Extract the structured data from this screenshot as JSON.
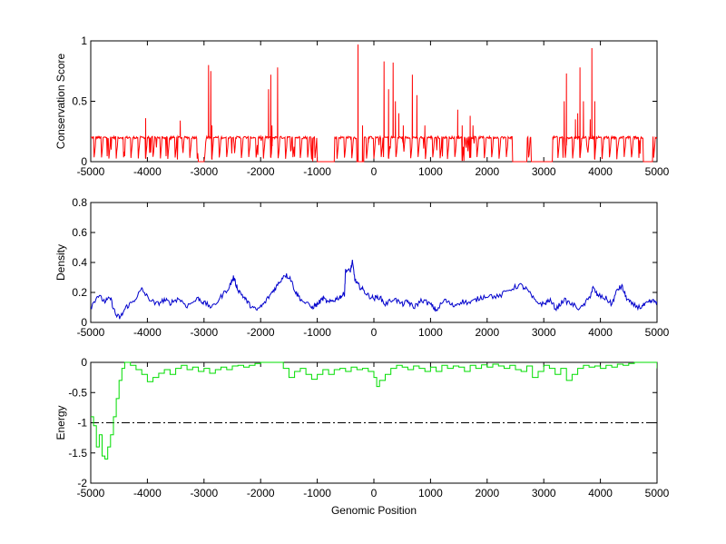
{
  "chart_data": [
    {
      "type": "line",
      "ylabel": "Conservation Score",
      "xlim": [
        -5000,
        5000
      ],
      "ylim": [
        0,
        1
      ],
      "xticks": [
        "-5000",
        "-4000",
        "-3000",
        "-2000",
        "-1000",
        "0",
        "1000",
        "2000",
        "3000",
        "4000",
        "5000"
      ],
      "yticks": [
        "0",
        "0.5",
        "1"
      ],
      "series": [
        {
          "color": "#ff0000",
          "baseline": 0.2,
          "spikes": [
            [
              -4030,
              0.36
            ],
            [
              -3990,
              0.2
            ],
            [
              -3420,
              0.34
            ],
            [
              -2920,
              0.8
            ],
            [
              -2880,
              0.75
            ],
            [
              -2860,
              0.3
            ],
            [
              -1860,
              0.6
            ],
            [
              -1820,
              0.72
            ],
            [
              -1800,
              0.3
            ],
            [
              -1700,
              0.78
            ],
            [
              -280,
              0.97
            ],
            [
              -200,
              0.3
            ],
            [
              -100,
              0.2
            ],
            [
              180,
              0.83
            ],
            [
              260,
              0.6
            ],
            [
              340,
              0.82
            ],
            [
              380,
              0.5
            ],
            [
              440,
              0.4
            ],
            [
              520,
              0.3
            ],
            [
              680,
              0.72
            ],
            [
              760,
              0.55
            ],
            [
              900,
              0.3
            ],
            [
              1480,
              0.43
            ],
            [
              1560,
              0.3
            ],
            [
              1700,
              0.38
            ],
            [
              1750,
              0.3
            ],
            [
              3360,
              0.5
            ],
            [
              3400,
              0.73
            ],
            [
              3560,
              0.35
            ],
            [
              3600,
              0.4
            ],
            [
              3640,
              0.78
            ],
            [
              3700,
              0.5
            ],
            [
              3820,
              0.35
            ],
            [
              3850,
              0.94
            ],
            [
              3900,
              0.5
            ]
          ],
          "zero_ranges": [
            [
              -3100,
              -3000
            ],
            [
              -1000,
              -700
            ],
            [
              -300,
              -180
            ],
            [
              2450,
              2700
            ],
            [
              2780,
              3150
            ],
            [
              4760,
              4920
            ]
          ]
        }
      ]
    },
    {
      "type": "line",
      "ylabel": "Density",
      "xlim": [
        -5000,
        5000
      ],
      "ylim": [
        0,
        0.8
      ],
      "xticks": [
        "-5000",
        "-4000",
        "-3000",
        "-2000",
        "-1000",
        "0",
        "1000",
        "2000",
        "3000",
        "4000",
        "5000"
      ],
      "yticks": [
        "0",
        "0.2",
        "0.4",
        "0.6",
        "0.8"
      ],
      "series": [
        {
          "color": "#0000cc",
          "points": [
            [
              -5000,
              0.1
            ],
            [
              -4880,
              0.18
            ],
            [
              -4750,
              0.14
            ],
            [
              -4650,
              0.16
            ],
            [
              -4560,
              0.05
            ],
            [
              -4480,
              0.03
            ],
            [
              -4380,
              0.1
            ],
            [
              -4250,
              0.14
            ],
            [
              -4100,
              0.22
            ],
            [
              -4000,
              0.17
            ],
            [
              -3850,
              0.12
            ],
            [
              -3700,
              0.15
            ],
            [
              -3600,
              0.13
            ],
            [
              -3450,
              0.16
            ],
            [
              -3300,
              0.11
            ],
            [
              -3100,
              0.16
            ],
            [
              -3000,
              0.13
            ],
            [
              -2850,
              0.1
            ],
            [
              -2700,
              0.17
            ],
            [
              -2550,
              0.24
            ],
            [
              -2480,
              0.3
            ],
            [
              -2400,
              0.22
            ],
            [
              -2300,
              0.17
            ],
            [
              -2200,
              0.12
            ],
            [
              -2080,
              0.08
            ],
            [
              -1950,
              0.12
            ],
            [
              -1800,
              0.2
            ],
            [
              -1700,
              0.25
            ],
            [
              -1580,
              0.32
            ],
            [
              -1480,
              0.3
            ],
            [
              -1380,
              0.2
            ],
            [
              -1280,
              0.15
            ],
            [
              -1100,
              0.1
            ],
            [
              -1000,
              0.12
            ],
            [
              -900,
              0.16
            ],
            [
              -800,
              0.13
            ],
            [
              -700,
              0.15
            ],
            [
              -600,
              0.17
            ],
            [
              -520,
              0.19
            ],
            [
              -500,
              0.35
            ],
            [
              -420,
              0.34
            ],
            [
              -380,
              0.4
            ],
            [
              -330,
              0.28
            ],
            [
              -280,
              0.25
            ],
            [
              -200,
              0.22
            ],
            [
              -100,
              0.18
            ],
            [
              0,
              0.16
            ],
            [
              100,
              0.17
            ],
            [
              200,
              0.12
            ],
            [
              350,
              0.16
            ],
            [
              500,
              0.12
            ],
            [
              600,
              0.14
            ],
            [
              700,
              0.1
            ],
            [
              850,
              0.15
            ],
            [
              1000,
              0.12
            ],
            [
              1100,
              0.08
            ],
            [
              1250,
              0.15
            ],
            [
              1400,
              0.11
            ],
            [
              1550,
              0.14
            ],
            [
              1700,
              0.13
            ],
            [
              1850,
              0.16
            ],
            [
              2000,
              0.18
            ],
            [
              2200,
              0.17
            ],
            [
              2400,
              0.22
            ],
            [
              2580,
              0.25
            ],
            [
              2700,
              0.22
            ],
            [
              2850,
              0.14
            ],
            [
              3000,
              0.12
            ],
            [
              3100,
              0.15
            ],
            [
              3220,
              0.09
            ],
            [
              3350,
              0.15
            ],
            [
              3500,
              0.12
            ],
            [
              3650,
              0.09
            ],
            [
              3800,
              0.16
            ],
            [
              3870,
              0.23
            ],
            [
              3950,
              0.18
            ],
            [
              4100,
              0.16
            ],
            [
              4200,
              0.12
            ],
            [
              4300,
              0.22
            ],
            [
              4380,
              0.24
            ],
            [
              4450,
              0.17
            ],
            [
              4550,
              0.12
            ],
            [
              4700,
              0.1
            ],
            [
              4800,
              0.12
            ],
            [
              4900,
              0.14
            ],
            [
              5000,
              0.14
            ]
          ]
        }
      ]
    },
    {
      "type": "line",
      "xlabel": "Genomic Position",
      "ylabel": "Energy",
      "xlim": [
        -5000,
        5000
      ],
      "ylim": [
        -2,
        0
      ],
      "xticks": [
        "-5000",
        "-4000",
        "-3000",
        "-2000",
        "-1000",
        "0",
        "1000",
        "2000",
        "3000",
        "4000",
        "5000"
      ],
      "yticks": [
        "-2",
        "-1.5",
        "-1",
        "-0.5",
        "0"
      ],
      "reference_line": {
        "y": -1,
        "style": "dash-dot",
        "color": "#000000"
      },
      "series": [
        {
          "color": "#00dd00",
          "points": [
            [
              -5000,
              -0.9
            ],
            [
              -4950,
              -1.05
            ],
            [
              -4900,
              -1.4
            ],
            [
              -4850,
              -1.2
            ],
            [
              -4800,
              -1.55
            ],
            [
              -4750,
              -1.6
            ],
            [
              -4700,
              -1.4
            ],
            [
              -4650,
              -1.2
            ],
            [
              -4600,
              -0.9
            ],
            [
              -4550,
              -0.6
            ],
            [
              -4500,
              -0.3
            ],
            [
              -4450,
              -0.1
            ],
            [
              -4400,
              0.0
            ],
            [
              -4300,
              -0.05
            ],
            [
              -4200,
              -0.12
            ],
            [
              -4100,
              -0.2
            ],
            [
              -4000,
              -0.32
            ],
            [
              -3900,
              -0.25
            ],
            [
              -3800,
              -0.18
            ],
            [
              -3700,
              -0.12
            ],
            [
              -3600,
              -0.2
            ],
            [
              -3500,
              -0.1
            ],
            [
              -3400,
              -0.05
            ],
            [
              -3300,
              -0.12
            ],
            [
              -3200,
              -0.08
            ],
            [
              -3100,
              -0.15
            ],
            [
              -3000,
              -0.1
            ],
            [
              -2900,
              -0.18
            ],
            [
              -2800,
              -0.12
            ],
            [
              -2700,
              -0.08
            ],
            [
              -2600,
              -0.12
            ],
            [
              -2500,
              -0.06
            ],
            [
              -2400,
              -0.05
            ],
            [
              -2300,
              -0.08
            ],
            [
              -2200,
              -0.05
            ],
            [
              -2100,
              -0.02
            ],
            [
              -2000,
              0.0
            ],
            [
              -1900,
              0.0
            ],
            [
              -1800,
              0.0
            ],
            [
              -1700,
              0.0
            ],
            [
              -1600,
              -0.1
            ],
            [
              -1500,
              -0.25
            ],
            [
              -1400,
              -0.15
            ],
            [
              -1300,
              -0.1
            ],
            [
              -1200,
              -0.2
            ],
            [
              -1100,
              -0.28
            ],
            [
              -1000,
              -0.2
            ],
            [
              -900,
              -0.12
            ],
            [
              -800,
              -0.2
            ],
            [
              -700,
              -0.12
            ],
            [
              -600,
              -0.1
            ],
            [
              -500,
              -0.15
            ],
            [
              -400,
              -0.08
            ],
            [
              -300,
              -0.12
            ],
            [
              -200,
              -0.1
            ],
            [
              -100,
              -0.15
            ],
            [
              0,
              -0.25
            ],
            [
              50,
              -0.4
            ],
            [
              100,
              -0.3
            ],
            [
              200,
              -0.2
            ],
            [
              300,
              -0.1
            ],
            [
              400,
              -0.05
            ],
            [
              500,
              -0.08
            ],
            [
              600,
              -0.12
            ],
            [
              700,
              -0.06
            ],
            [
              800,
              -0.1
            ],
            [
              900,
              -0.15
            ],
            [
              1000,
              -0.08
            ],
            [
              1100,
              -0.15
            ],
            [
              1200,
              -0.05
            ],
            [
              1300,
              -0.1
            ],
            [
              1400,
              -0.06
            ],
            [
              1500,
              -0.08
            ],
            [
              1600,
              -0.15
            ],
            [
              1700,
              -0.05
            ],
            [
              1800,
              -0.1
            ],
            [
              1900,
              -0.04
            ],
            [
              2000,
              -0.08
            ],
            [
              2100,
              -0.03
            ],
            [
              2200,
              -0.06
            ],
            [
              2300,
              -0.1
            ],
            [
              2400,
              -0.05
            ],
            [
              2500,
              -0.12
            ],
            [
              2600,
              -0.15
            ],
            [
              2700,
              -0.06
            ],
            [
              2800,
              -0.25
            ],
            [
              2900,
              -0.15
            ],
            [
              3000,
              -0.05
            ],
            [
              3100,
              -0.1
            ],
            [
              3200,
              -0.2
            ],
            [
              3300,
              -0.1
            ],
            [
              3400,
              -0.3
            ],
            [
              3500,
              -0.2
            ],
            [
              3600,
              -0.1
            ],
            [
              3700,
              -0.05
            ],
            [
              3800,
              -0.08
            ],
            [
              3900,
              -0.06
            ],
            [
              4000,
              -0.1
            ],
            [
              4100,
              -0.05
            ],
            [
              4200,
              -0.08
            ],
            [
              4300,
              -0.03
            ],
            [
              4400,
              -0.05
            ],
            [
              4500,
              -0.02
            ],
            [
              4600,
              0.0
            ],
            [
              4700,
              0.0
            ],
            [
              4800,
              0.0
            ],
            [
              4900,
              0.0
            ],
            [
              5000,
              -0.1
            ]
          ]
        }
      ]
    }
  ]
}
